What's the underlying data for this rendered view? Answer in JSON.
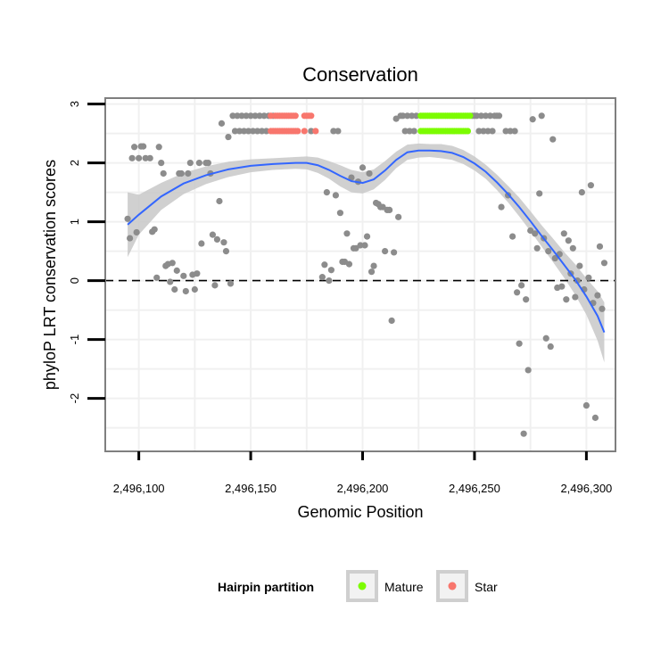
{
  "chart_data": {
    "type": "scatter",
    "title": "Conservation",
    "xlabel": "Genomic Position",
    "ylabel": "phyloP LRT conservation scores",
    "xlim": [
      2496085,
      2496313
    ],
    "ylim": [
      -2.9,
      3.1
    ],
    "x_ticks": [
      {
        "value": 2496100,
        "label": "2,496,100"
      },
      {
        "value": 2496150,
        "label": "2,496,150"
      },
      {
        "value": 2496200,
        "label": "2,496,200"
      },
      {
        "value": 2496250,
        "label": "2,496,250"
      },
      {
        "value": 2496300,
        "label": "2,496,300"
      }
    ],
    "y_ticks": [
      {
        "value": -2,
        "label": "-2"
      },
      {
        "value": -1,
        "label": "-1"
      },
      {
        "value": 0,
        "label": "0"
      },
      {
        "value": 1,
        "label": "1"
      },
      {
        "value": 2,
        "label": "2"
      },
      {
        "value": 3,
        "label": "3"
      }
    ],
    "reference_line": {
      "y": 0,
      "style": "dashed"
    },
    "legend": {
      "title": "Hairpin partition",
      "placement": "bottom",
      "entries": [
        {
          "label": "Mature",
          "color": "#7cfc00"
        },
        {
          "label": "Star",
          "color": "#f8766d"
        }
      ]
    },
    "colors": {
      "other": "#8c8c8c",
      "Mature": "#7cfc00",
      "Star": "#f8766d",
      "smooth": "#3366ff",
      "ribbon": "#c8c8c8",
      "grid": "#f0f0f0",
      "panel_border": "#7f7f7f"
    },
    "series": [
      {
        "name": "Other",
        "points": [
          [
            2496095,
            1.05
          ],
          [
            2496096,
            0.72
          ],
          [
            2496097,
            2.08
          ],
          [
            2496098,
            2.27
          ],
          [
            2496099,
            0.82
          ],
          [
            2496100,
            2.08
          ],
          [
            2496101,
            2.28
          ],
          [
            2496102,
            2.28
          ],
          [
            2496103,
            2.08
          ],
          [
            2496105,
            2.08
          ],
          [
            2496106,
            0.83
          ],
          [
            2496107,
            0.87
          ],
          [
            2496108,
            0.05
          ],
          [
            2496109,
            2.27
          ],
          [
            2496110,
            2.0
          ],
          [
            2496111,
            1.82
          ],
          [
            2496112,
            0.25
          ],
          [
            2496113,
            0.28
          ],
          [
            2496114,
            -0.02
          ],
          [
            2496115,
            0.3
          ],
          [
            2496116,
            -0.15
          ],
          [
            2496117,
            0.17
          ],
          [
            2496118,
            1.82
          ],
          [
            2496119,
            1.82
          ],
          [
            2496120,
            0.08
          ],
          [
            2496121,
            -0.18
          ],
          [
            2496122,
            1.82
          ],
          [
            2496123,
            2.0
          ],
          [
            2496124,
            0.1
          ],
          [
            2496125,
            -0.15
          ],
          [
            2496126,
            0.12
          ],
          [
            2496127,
            2.0
          ],
          [
            2496128,
            0.63
          ],
          [
            2496130,
            2.0
          ],
          [
            2496131,
            2.0
          ],
          [
            2496132,
            1.82
          ],
          [
            2496133,
            0.78
          ],
          [
            2496134,
            -0.08
          ],
          [
            2496135,
            0.7
          ],
          [
            2496136,
            1.35
          ],
          [
            2496137,
            2.67
          ],
          [
            2496138,
            0.65
          ],
          [
            2496139,
            0.5
          ],
          [
            2496140,
            2.44
          ],
          [
            2496141,
            -0.05
          ],
          [
            2496142,
            2.8
          ],
          [
            2496143,
            2.54
          ],
          [
            2496144,
            2.8
          ],
          [
            2496145,
            2.54
          ],
          [
            2496146,
            2.8
          ],
          [
            2496147,
            2.54
          ],
          [
            2496148,
            2.8
          ],
          [
            2496149,
            2.54
          ],
          [
            2496150,
            2.8
          ],
          [
            2496151,
            2.54
          ],
          [
            2496152,
            2.8
          ],
          [
            2496153,
            2.54
          ],
          [
            2496154,
            2.8
          ],
          [
            2496155,
            2.54
          ],
          [
            2496156,
            2.8
          ],
          [
            2496157,
            2.54
          ],
          [
            2496158,
            2.8
          ],
          [
            2496160,
            2.8
          ],
          [
            2496177,
            2.54
          ],
          [
            2496182,
            0.06
          ],
          [
            2496183,
            0.27
          ],
          [
            2496184,
            1.5
          ],
          [
            2496185,
            0.0
          ],
          [
            2496186,
            0.18
          ],
          [
            2496187,
            2.54
          ],
          [
            2496188,
            1.45
          ],
          [
            2496189,
            2.54
          ],
          [
            2496190,
            1.15
          ],
          [
            2496191,
            0.32
          ],
          [
            2496192,
            0.32
          ],
          [
            2496193,
            0.8
          ],
          [
            2496194,
            0.28
          ],
          [
            2496195,
            1.75
          ],
          [
            2496196,
            0.55
          ],
          [
            2496197,
            0.55
          ],
          [
            2496198,
            1.68
          ],
          [
            2496199,
            0.6
          ],
          [
            2496200,
            1.92
          ],
          [
            2496201,
            0.6
          ],
          [
            2496202,
            0.75
          ],
          [
            2496203,
            1.82
          ],
          [
            2496204,
            0.15
          ],
          [
            2496205,
            0.25
          ],
          [
            2496206,
            1.32
          ],
          [
            2496207,
            1.3
          ],
          [
            2496208,
            1.25
          ],
          [
            2496209,
            1.25
          ],
          [
            2496210,
            0.5
          ],
          [
            2496211,
            1.2
          ],
          [
            2496212,
            1.2
          ],
          [
            2496213,
            -0.68
          ],
          [
            2496214,
            0.48
          ],
          [
            2496215,
            2.75
          ],
          [
            2496216,
            1.08
          ],
          [
            2496217,
            2.8
          ],
          [
            2496218,
            2.8
          ],
          [
            2496219,
            2.54
          ],
          [
            2496220,
            2.8
          ],
          [
            2496221,
            2.54
          ],
          [
            2496222,
            2.8
          ],
          [
            2496223,
            2.54
          ],
          [
            2496224,
            2.8
          ],
          [
            2496249,
            2.8
          ],
          [
            2496250,
            2.8
          ],
          [
            2496251,
            2.8
          ],
          [
            2496252,
            2.54
          ],
          [
            2496253,
            2.8
          ],
          [
            2496254,
            2.54
          ],
          [
            2496255,
            2.8
          ],
          [
            2496256,
            2.54
          ],
          [
            2496257,
            2.8
          ],
          [
            2496258,
            2.54
          ],
          [
            2496259,
            2.8
          ],
          [
            2496260,
            2.8
          ],
          [
            2496261,
            2.8
          ],
          [
            2496262,
            1.25
          ],
          [
            2496264,
            2.54
          ],
          [
            2496265,
            1.45
          ],
          [
            2496266,
            2.54
          ],
          [
            2496267,
            0.75
          ],
          [
            2496268,
            2.54
          ],
          [
            2496269,
            -0.2
          ],
          [
            2496270,
            -1.07
          ],
          [
            2496271,
            -0.08
          ],
          [
            2496272,
            -2.6
          ],
          [
            2496273,
            -0.32
          ],
          [
            2496274,
            -1.52
          ],
          [
            2496275,
            0.85
          ],
          [
            2496276,
            2.74
          ],
          [
            2496277,
            0.8
          ],
          [
            2496278,
            0.55
          ],
          [
            2496279,
            1.48
          ],
          [
            2496280,
            2.8
          ],
          [
            2496281,
            0.72
          ],
          [
            2496282,
            -0.98
          ],
          [
            2496283,
            0.5
          ],
          [
            2496284,
            -1.12
          ],
          [
            2496285,
            2.4
          ],
          [
            2496286,
            0.38
          ],
          [
            2496287,
            -0.12
          ],
          [
            2496288,
            0.45
          ],
          [
            2496289,
            -0.1
          ],
          [
            2496290,
            0.8
          ],
          [
            2496291,
            -0.32
          ],
          [
            2496292,
            0.68
          ],
          [
            2496293,
            0.12
          ],
          [
            2496294,
            0.55
          ],
          [
            2496295,
            -0.28
          ],
          [
            2496296,
            0.0
          ],
          [
            2496297,
            0.25
          ],
          [
            2496298,
            1.5
          ],
          [
            2496299,
            -0.15
          ],
          [
            2496300,
            -2.12
          ],
          [
            2496301,
            0.05
          ],
          [
            2496302,
            1.62
          ],
          [
            2496303,
            -0.38
          ],
          [
            2496304,
            -2.33
          ],
          [
            2496305,
            -0.25
          ],
          [
            2496306,
            0.58
          ],
          [
            2496307,
            -0.48
          ],
          [
            2496308,
            0.3
          ]
        ]
      },
      {
        "name": "Star",
        "points": [
          [
            2496159,
            2.8
          ],
          [
            2496161,
            2.8
          ],
          [
            2496162,
            2.8
          ],
          [
            2496163,
            2.8
          ],
          [
            2496164,
            2.8
          ],
          [
            2496165,
            2.8
          ],
          [
            2496166,
            2.8
          ],
          [
            2496167,
            2.8
          ],
          [
            2496168,
            2.8
          ],
          [
            2496169,
            2.8
          ],
          [
            2496170,
            2.8
          ],
          [
            2496174,
            2.8
          ],
          [
            2496175,
            2.8
          ],
          [
            2496176,
            2.8
          ],
          [
            2496177,
            2.8
          ],
          [
            2496159,
            2.54
          ],
          [
            2496160,
            2.54
          ],
          [
            2496161,
            2.54
          ],
          [
            2496162,
            2.54
          ],
          [
            2496163,
            2.54
          ],
          [
            2496164,
            2.54
          ],
          [
            2496165,
            2.54
          ],
          [
            2496166,
            2.54
          ],
          [
            2496167,
            2.54
          ],
          [
            2496168,
            2.54
          ],
          [
            2496169,
            2.54
          ],
          [
            2496170,
            2.54
          ],
          [
            2496171,
            2.54
          ],
          [
            2496174,
            2.54
          ],
          [
            2496179,
            2.54
          ]
        ]
      },
      {
        "name": "Mature",
        "points": [
          [
            2496226,
            2.8
          ],
          [
            2496227,
            2.8
          ],
          [
            2496228,
            2.8
          ],
          [
            2496229,
            2.8
          ],
          [
            2496230,
            2.8
          ],
          [
            2496231,
            2.8
          ],
          [
            2496232,
            2.8
          ],
          [
            2496233,
            2.8
          ],
          [
            2496234,
            2.8
          ],
          [
            2496235,
            2.8
          ],
          [
            2496236,
            2.8
          ],
          [
            2496237,
            2.8
          ],
          [
            2496238,
            2.8
          ],
          [
            2496239,
            2.8
          ],
          [
            2496240,
            2.8
          ],
          [
            2496241,
            2.8
          ],
          [
            2496242,
            2.8
          ],
          [
            2496243,
            2.8
          ],
          [
            2496244,
            2.8
          ],
          [
            2496245,
            2.8
          ],
          [
            2496246,
            2.8
          ],
          [
            2496247,
            2.8
          ],
          [
            2496248,
            2.8
          ],
          [
            2496226,
            2.54
          ],
          [
            2496227,
            2.54
          ],
          [
            2496228,
            2.54
          ],
          [
            2496229,
            2.54
          ],
          [
            2496230,
            2.54
          ],
          [
            2496231,
            2.54
          ],
          [
            2496232,
            2.54
          ],
          [
            2496233,
            2.54
          ],
          [
            2496234,
            2.54
          ],
          [
            2496235,
            2.54
          ],
          [
            2496236,
            2.54
          ],
          [
            2496237,
            2.54
          ],
          [
            2496238,
            2.54
          ],
          [
            2496239,
            2.54
          ],
          [
            2496240,
            2.54
          ],
          [
            2496241,
            2.54
          ],
          [
            2496242,
            2.54
          ],
          [
            2496243,
            2.54
          ],
          [
            2496244,
            2.54
          ],
          [
            2496245,
            2.54
          ],
          [
            2496246,
            2.54
          ],
          [
            2496247,
            2.54
          ]
        ]
      }
    ],
    "smooth": {
      "name": "Loess fit",
      "x": [
        2496095,
        2496100,
        2496110,
        2496120,
        2496130,
        2496140,
        2496150,
        2496160,
        2496170,
        2496175,
        2496180,
        2496185,
        2496190,
        2496195,
        2496200,
        2496205,
        2496210,
        2496215,
        2496220,
        2496225,
        2496230,
        2496235,
        2496240,
        2496245,
        2496250,
        2496255,
        2496260,
        2496265,
        2496270,
        2496275,
        2496280,
        2496285,
        2496290,
        2496295,
        2496300,
        2496305,
        2496308
      ],
      "y": [
        0.95,
        1.12,
        1.43,
        1.65,
        1.79,
        1.89,
        1.95,
        1.98,
        2.0,
        2.0,
        1.96,
        1.88,
        1.78,
        1.69,
        1.66,
        1.72,
        1.87,
        2.05,
        2.18,
        2.21,
        2.21,
        2.2,
        2.17,
        2.1,
        1.99,
        1.85,
        1.67,
        1.47,
        1.25,
        1.01,
        0.76,
        0.52,
        0.27,
        0.02,
        -0.27,
        -0.6,
        -0.88
      ],
      "lower": [
        0.4,
        0.78,
        1.2,
        1.47,
        1.64,
        1.76,
        1.84,
        1.88,
        1.9,
        1.89,
        1.83,
        1.73,
        1.6,
        1.5,
        1.48,
        1.55,
        1.71,
        1.91,
        2.05,
        2.09,
        2.1,
        2.08,
        2.05,
        1.98,
        1.87,
        1.73,
        1.54,
        1.33,
        1.09,
        0.84,
        0.58,
        0.32,
        0.05,
        -0.24,
        -0.58,
        -1.02,
        -1.39
      ],
      "upper": [
        1.5,
        1.46,
        1.66,
        1.83,
        1.94,
        2.02,
        2.06,
        2.08,
        2.1,
        2.11,
        2.09,
        2.03,
        1.96,
        1.88,
        1.84,
        1.89,
        2.03,
        2.19,
        2.31,
        2.33,
        2.32,
        2.32,
        2.29,
        2.22,
        2.11,
        1.97,
        1.8,
        1.61,
        1.41,
        1.18,
        0.94,
        0.72,
        0.49,
        0.28,
        0.04,
        -0.18,
        -0.37
      ]
    }
  }
}
